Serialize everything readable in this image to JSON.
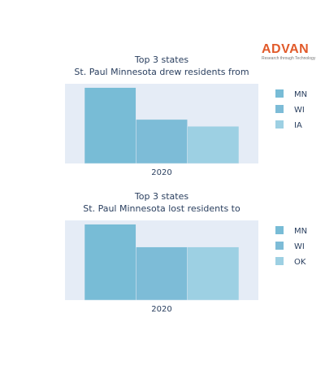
{
  "logo": {
    "text": "ADVAN",
    "tagline": "Research through Technology"
  },
  "chart_data": [
    {
      "type": "bar",
      "title_lines": [
        "Top 3 states",
        "St. Paul Minnesota drew residents from"
      ],
      "categories": [
        "2020"
      ],
      "series": [
        {
          "name": "MN",
          "values": [
            100
          ],
          "color": "#78bcd6"
        },
        {
          "name": "WI",
          "values": [
            58
          ],
          "color": "#7dbcd7"
        },
        {
          "name": "IA",
          "values": [
            49
          ],
          "color": "#9dd0e3"
        }
      ],
      "ylim": [
        0,
        105
      ],
      "grid": false,
      "legend_position": "right"
    },
    {
      "type": "bar",
      "title_lines": [
        "Top 3 states",
        "St. Paul Minnesota lost residents to"
      ],
      "categories": [
        "2020"
      ],
      "series": [
        {
          "name": "MN",
          "values": [
            100
          ],
          "color": "#78bcd6"
        },
        {
          "name": "WI",
          "values": [
            70
          ],
          "color": "#7dbcd7"
        },
        {
          "name": "OK",
          "values": [
            70
          ],
          "color": "#9dd0e3"
        }
      ],
      "ylim": [
        0,
        105
      ],
      "grid": false,
      "legend_position": "right"
    }
  ]
}
